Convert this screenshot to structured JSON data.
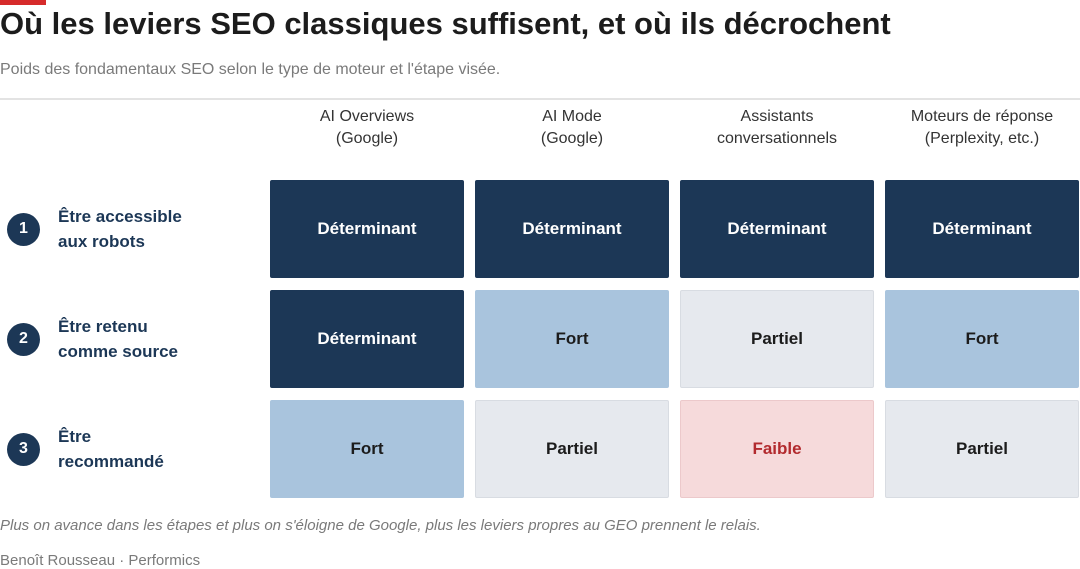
{
  "chart_data": {
    "type": "table",
    "title": "Où les leviers SEO classiques suffisent, et où ils décrochent",
    "subtitle": "Poids des fondamentaux SEO selon le type de moteur et l'étape visée.",
    "columns": [
      "AI Overviews\n(Google)",
      "AI Mode\n(Google)",
      "Assistants\nconversationnels",
      "Moteurs de réponse\n(Perplexity, etc.)"
    ],
    "rows": [
      {
        "number": "1",
        "label": "Être accessible\naux robots",
        "cells": [
          {
            "text": "Déterminant",
            "level": "determinant"
          },
          {
            "text": "Déterminant",
            "level": "determinant"
          },
          {
            "text": "Déterminant",
            "level": "determinant"
          },
          {
            "text": "Déterminant",
            "level": "determinant"
          }
        ]
      },
      {
        "number": "2",
        "label": "Être retenu\ncomme source",
        "cells": [
          {
            "text": "Déterminant",
            "level": "determinant"
          },
          {
            "text": "Fort",
            "level": "fort"
          },
          {
            "text": "Partiel",
            "level": "partiel"
          },
          {
            "text": "Fort",
            "level": "fort"
          }
        ]
      },
      {
        "number": "3",
        "label": "Être\nrecommandé",
        "cells": [
          {
            "text": "Fort",
            "level": "fort"
          },
          {
            "text": "Partiel",
            "level": "partiel"
          },
          {
            "text": "Faible",
            "level": "faible"
          },
          {
            "text": "Partiel",
            "level": "partiel"
          }
        ]
      }
    ],
    "note": "Plus on avance dans les étapes et plus on s'éloigne de Google, plus les leviers propres au GEO prennent le relais.",
    "source": "Benoît Rousseau · Performics"
  },
  "colors": {
    "accent": "#d62b2b",
    "determinant": "#1c3756",
    "fort": "#a9c4dd",
    "partiel": "#e6e9ee",
    "faible": "#f6dadb",
    "faible_text": "#b22a2e"
  }
}
